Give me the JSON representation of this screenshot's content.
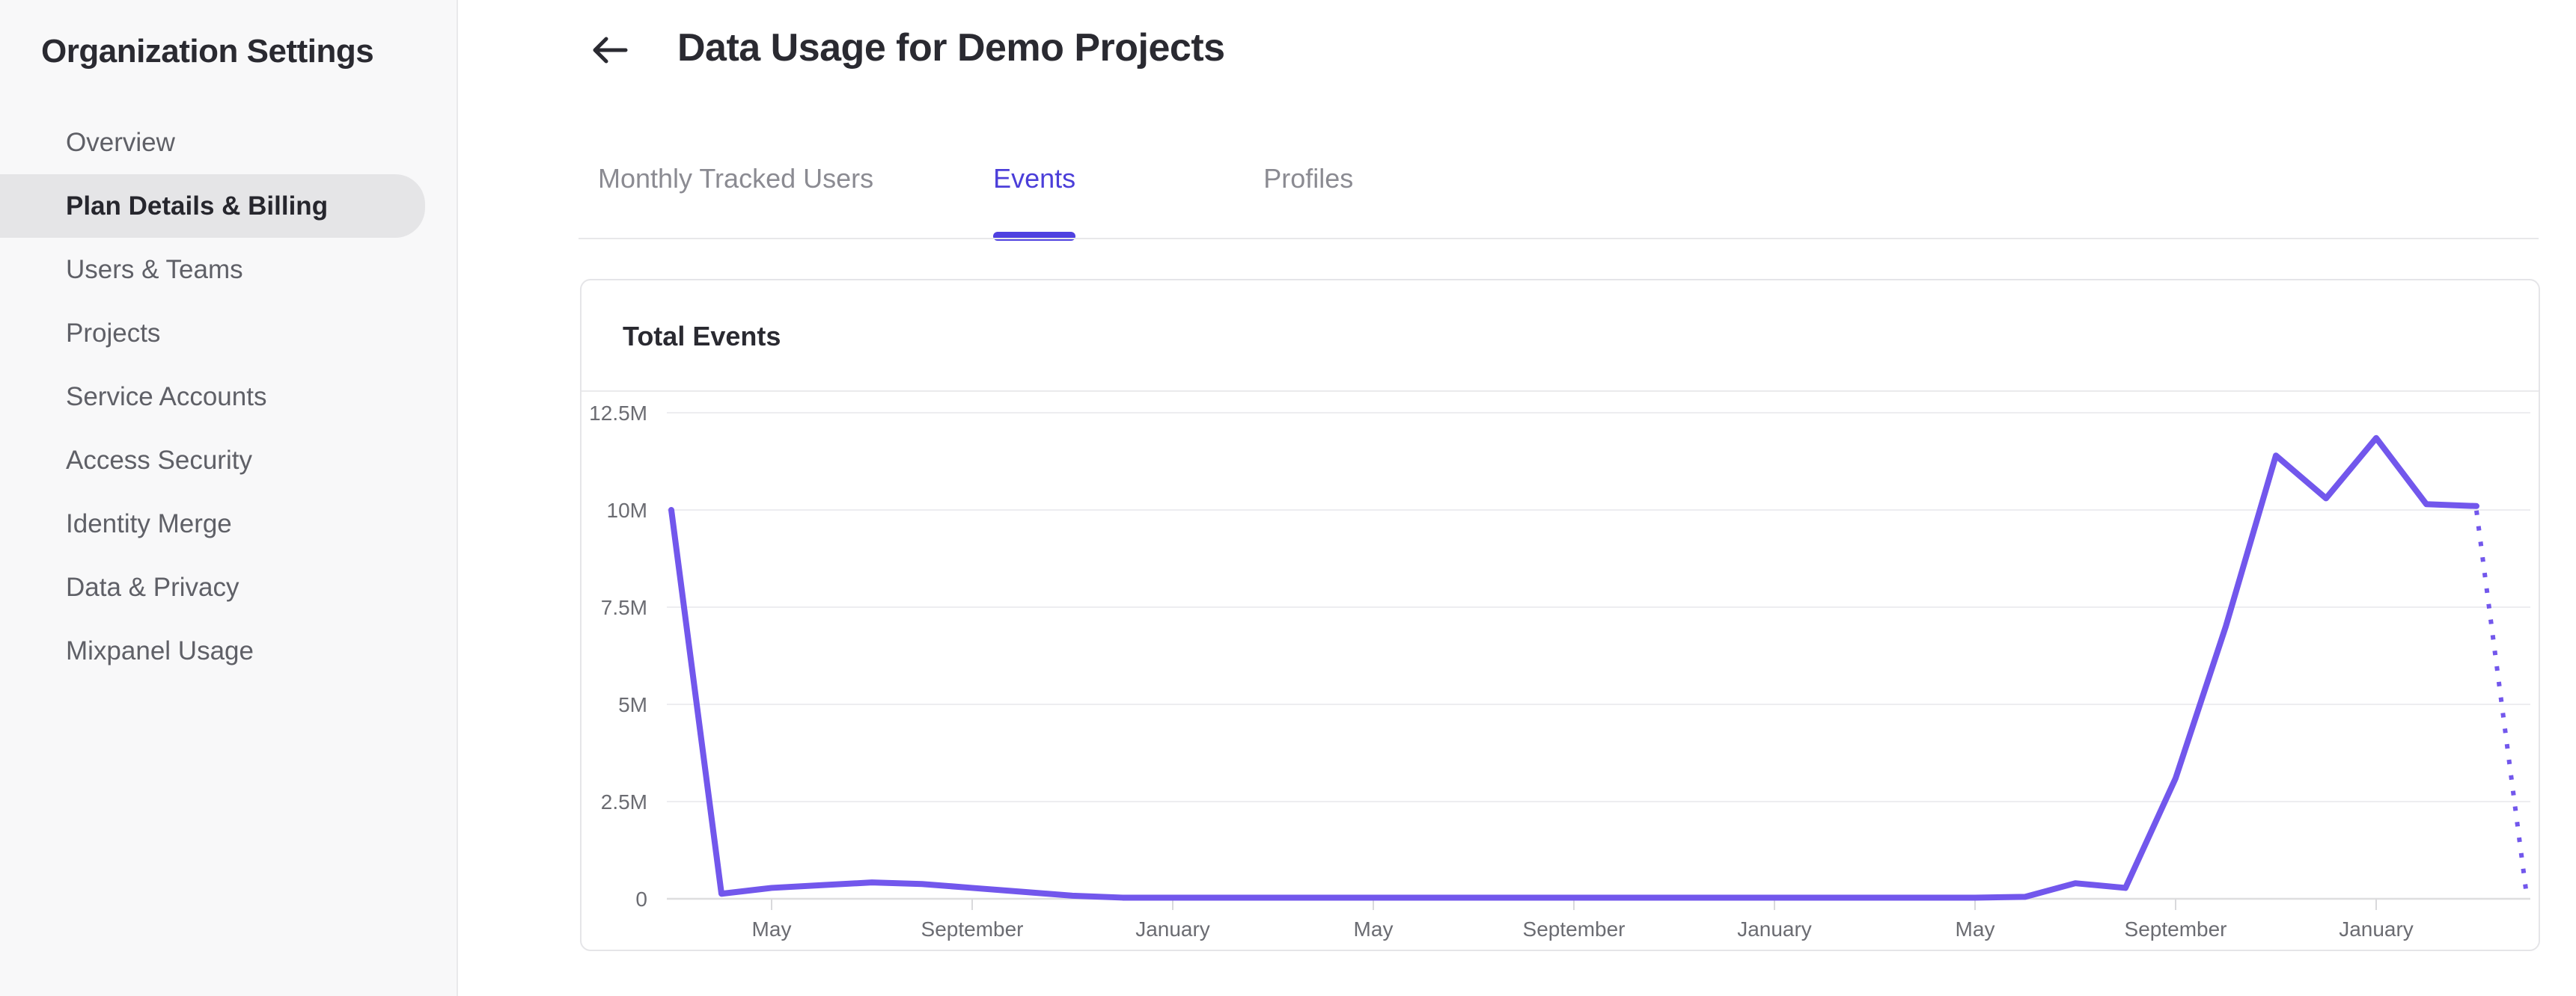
{
  "sidebar": {
    "title": "Organization Settings",
    "items": [
      {
        "label": "Overview",
        "selected": false
      },
      {
        "label": "Plan Details & Billing",
        "selected": true
      },
      {
        "label": "Users & Teams",
        "selected": false
      },
      {
        "label": "Projects",
        "selected": false
      },
      {
        "label": "Service Accounts",
        "selected": false
      },
      {
        "label": "Access Security",
        "selected": false
      },
      {
        "label": "Identity Merge",
        "selected": false
      },
      {
        "label": "Data & Privacy",
        "selected": false
      },
      {
        "label": "Mixpanel Usage",
        "selected": false
      }
    ]
  },
  "header": {
    "title": "Data Usage for Demo Projects",
    "back_icon": "arrow-left-icon"
  },
  "tabs": [
    {
      "label": "Monthly Tracked Users",
      "active": false
    },
    {
      "label": "Events",
      "active": true
    },
    {
      "label": "Profiles",
      "active": false
    }
  ],
  "card": {
    "title": "Total Events"
  },
  "colors": {
    "accent_tab": "#4b3ed9",
    "tab_underline": "#4f41e0",
    "chart_line": "#7257ec",
    "sidebar_bg": "#f8f8f9",
    "selected_pill": "#e5e5e7",
    "gridline": "#ededf0",
    "axis_line": "#dededf",
    "tick": "#d9d9dc",
    "axis_label": "#6b6c72"
  },
  "chart_data": {
    "type": "line",
    "title": "Total Events",
    "unit": "events per month",
    "ylim_millions": [
      0,
      12.5
    ],
    "ytick_labels": [
      "12.5M",
      "10M",
      "7.5M",
      "5M",
      "2.5M",
      "0"
    ],
    "ytick_values_millions": [
      12.5,
      10,
      7.5,
      5,
      2.5,
      0
    ],
    "xtick_labels": [
      "May",
      "September",
      "January",
      "May",
      "September",
      "January",
      "May",
      "September",
      "January"
    ],
    "xtick_indices": [
      2,
      6,
      10,
      14,
      18,
      22,
      26,
      30,
      34
    ],
    "grid": "horizontal",
    "legend": "none",
    "dotted_from_index": 36,
    "series": [
      {
        "name": "Total Events",
        "values_millions": [
          10.0,
          0.13,
          0.28,
          0.35,
          0.42,
          0.38,
          0.28,
          0.18,
          0.08,
          0.03,
          0.03,
          0.03,
          0.03,
          0.03,
          0.03,
          0.03,
          0.03,
          0.03,
          0.03,
          0.03,
          0.03,
          0.03,
          0.03,
          0.03,
          0.03,
          0.03,
          0.03,
          0.05,
          0.4,
          0.28,
          3.1,
          7.0,
          11.4,
          10.3,
          11.85,
          10.15,
          10.1,
          0.1
        ]
      }
    ]
  }
}
